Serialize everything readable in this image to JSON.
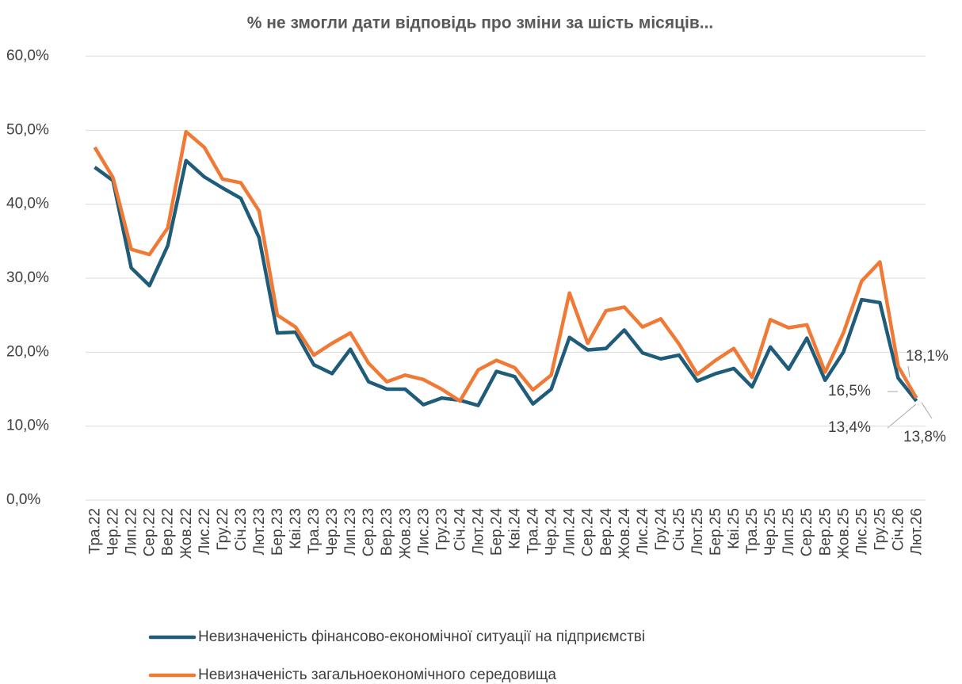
{
  "chart_data": {
    "type": "line",
    "title": "% не змогли дати відповідь про зміни за шість місяців...",
    "categories": [
      "Тра.22",
      "Чер.22",
      "Лип.22",
      "Сер.22",
      "Вер.22",
      "Жов.22",
      "Лис.22",
      "Гру.22",
      "Січ.23",
      "Лют.23",
      "Бер.23",
      "Кві.23",
      "Тра.23",
      "Чер.23",
      "Лип.23",
      "Сер.23",
      "Вер.23",
      "Жов.23",
      "Лис.23",
      "Гру.23",
      "Січ.24",
      "Лют.24",
      "Бер.24",
      "Кві.24",
      "Тра.24",
      "Чер.24",
      "Лип.24",
      "Сер.24",
      "Вер.24",
      "Жов.24",
      "Лис.24",
      "Гру.24",
      "Січ.25",
      "Лют.25",
      "Бер.25",
      "Кві.25",
      "Тра.25",
      "Чер.25",
      "Лип.25",
      "Сер.25",
      "Вер.25",
      "Жов.25",
      "Лис.25",
      "Гру.25",
      "Січ.26",
      "Лют.26"
    ],
    "series": [
      {
        "name": "Невизначеність фінансово-економічної ситуації на підприємстві",
        "color": "#1f5c7a",
        "values": [
          45.0,
          43.2,
          31.4,
          29.0,
          34.4,
          45.9,
          43.7,
          42.2,
          40.8,
          35.5,
          22.6,
          22.7,
          18.3,
          17.1,
          20.4,
          16.0,
          15.0,
          15.0,
          12.9,
          13.8,
          13.5,
          12.8,
          17.4,
          16.7,
          13.0,
          15.0,
          22.0,
          20.3,
          20.5,
          23.0,
          19.9,
          19.1,
          19.6,
          16.1,
          17.1,
          17.8,
          15.3,
          20.7,
          17.7,
          21.9,
          16.2,
          20.0,
          27.1,
          26.7,
          16.5,
          13.4
        ],
        "value_labels": [
          null,
          null,
          null,
          null,
          null,
          null,
          null,
          null,
          null,
          null,
          null,
          null,
          null,
          null,
          null,
          null,
          null,
          null,
          null,
          null,
          null,
          null,
          null,
          null,
          null,
          null,
          null,
          null,
          null,
          null,
          null,
          null,
          null,
          null,
          null,
          null,
          null,
          null,
          null,
          null,
          null,
          null,
          null,
          null,
          "16,5%",
          "13,4%"
        ]
      },
      {
        "name": "Невизначеність загальноекономічного середовища",
        "color": "#f07a35",
        "values": [
          47.7,
          43.6,
          33.9,
          33.2,
          36.8,
          49.8,
          47.7,
          43.4,
          42.9,
          39.1,
          25.0,
          23.4,
          19.6,
          21.2,
          22.6,
          18.5,
          16.0,
          16.9,
          16.3,
          15.0,
          13.4,
          17.6,
          18.9,
          17.9,
          14.9,
          16.9,
          28.0,
          21.2,
          25.6,
          26.1,
          23.4,
          24.5,
          21.1,
          17.0,
          18.9,
          20.5,
          16.6,
          24.4,
          23.3,
          23.7,
          17.3,
          22.6,
          29.6,
          32.2,
          18.1,
          13.8
        ],
        "value_labels": [
          null,
          null,
          null,
          null,
          null,
          null,
          null,
          null,
          null,
          null,
          null,
          null,
          null,
          null,
          null,
          null,
          null,
          null,
          null,
          null,
          null,
          null,
          null,
          null,
          null,
          null,
          null,
          null,
          null,
          null,
          null,
          null,
          null,
          null,
          null,
          null,
          null,
          null,
          null,
          null,
          null,
          null,
          null,
          null,
          "18,1%",
          "13,8%"
        ]
      }
    ],
    "ylim": [
      0,
      60
    ],
    "yticks": [
      {
        "value": 0,
        "label": "0,0%"
      },
      {
        "value": 10,
        "label": "10,0%"
      },
      {
        "value": 20,
        "label": "20,0%"
      },
      {
        "value": 30,
        "label": "30,0%"
      },
      {
        "value": 40,
        "label": "40,0%"
      },
      {
        "value": 50,
        "label": "50,0%"
      },
      {
        "value": 60,
        "label": "60,0%"
      }
    ],
    "grid": true
  }
}
